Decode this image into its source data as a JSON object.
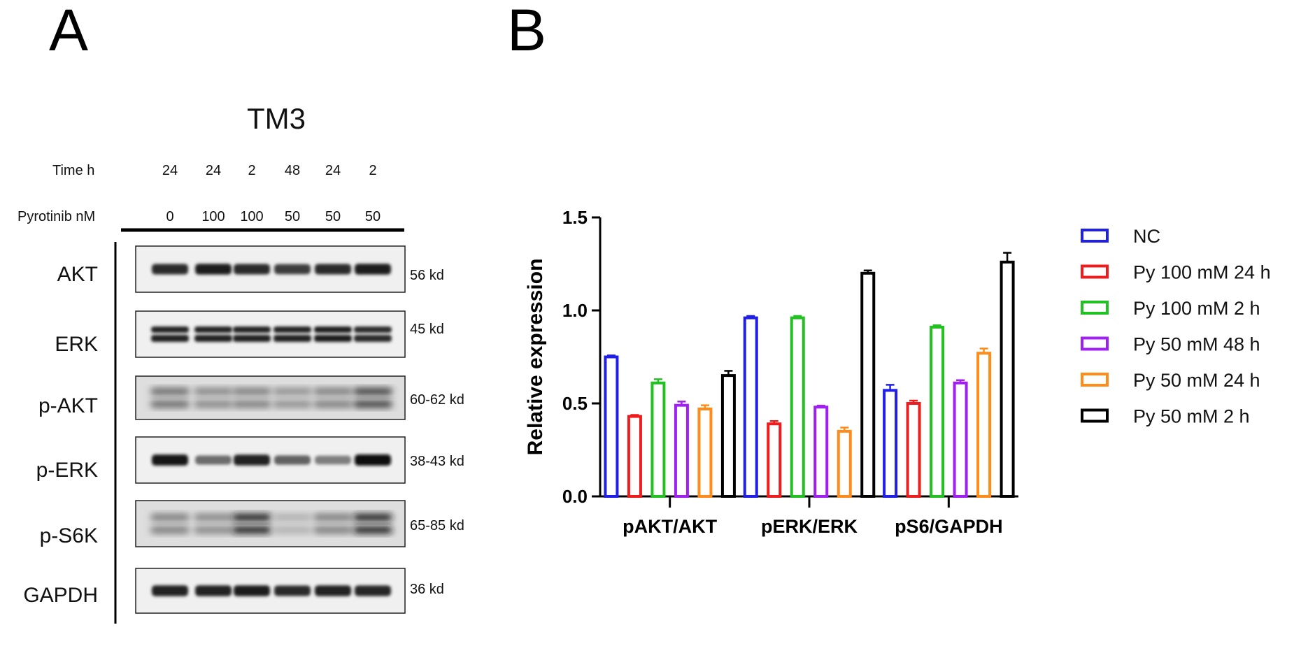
{
  "panels": {
    "a": "A",
    "b": "B"
  },
  "blot": {
    "title": "TM3",
    "time_label": "Time h",
    "drug_label": "Pyrotinib nM",
    "time_values": [
      "24",
      "24",
      "2",
      "48",
      "24",
      "2"
    ],
    "drug_values": [
      "0",
      "100",
      "100",
      "50",
      "50",
      "50"
    ],
    "rows": [
      {
        "label": "AKT",
        "kd": "56 kd",
        "intensity": [
          0.85,
          0.92,
          0.85,
          0.75,
          0.85,
          0.92
        ]
      },
      {
        "label": "ERK",
        "kd": "45 kd",
        "intensity": [
          0.9,
          0.9,
          0.9,
          0.9,
          0.92,
          0.85
        ]
      },
      {
        "label": "p-AKT",
        "kd": "60-62 kd",
        "intensity": [
          0.55,
          0.4,
          0.45,
          0.35,
          0.45,
          0.8
        ]
      },
      {
        "label": "p-ERK",
        "kd": "38-43 kd",
        "intensity": [
          0.95,
          0.5,
          0.9,
          0.55,
          0.4,
          1.0
        ]
      },
      {
        "label": "p-S6K",
        "kd": "65-85 kd",
        "intensity": [
          0.45,
          0.4,
          0.95,
          0.15,
          0.45,
          0.98
        ]
      },
      {
        "label": "GAPDH",
        "kd": "36 kd",
        "intensity": [
          0.9,
          0.9,
          0.92,
          0.85,
          0.9,
          0.88
        ]
      }
    ]
  },
  "chart_data": {
    "type": "bar",
    "title": "",
    "xlabel": "",
    "ylabel": "Relative expression",
    "ylim": [
      0,
      1.5
    ],
    "yticks": [
      "0.0",
      "0.5",
      "1.0",
      "1.5"
    ],
    "grid": false,
    "legend_position": "right",
    "categories": [
      "pAKT/AKT",
      "pERK/ERK",
      "pS6/GAPDH"
    ],
    "series": [
      {
        "name": "NC",
        "color": "#1f1fe8",
        "values": [
          0.75,
          0.96,
          0.57
        ],
        "errors": [
          0.008,
          0.01,
          0.03
        ]
      },
      {
        "name": "Py 100 mM 24 h",
        "color": "#ee1c1c",
        "values": [
          0.43,
          0.39,
          0.5
        ],
        "errors": [
          0.008,
          0.015,
          0.015
        ]
      },
      {
        "name": "Py 100 mM 2 h",
        "color": "#22c022",
        "values": [
          0.61,
          0.96,
          0.91
        ],
        "errors": [
          0.02,
          0.01,
          0.01
        ]
      },
      {
        "name": "Py 50 mM 48 h",
        "color": "#a020f0",
        "values": [
          0.49,
          0.48,
          0.61
        ],
        "errors": [
          0.02,
          0.008,
          0.015
        ]
      },
      {
        "name": "Py 50 mM 24 h",
        "color": "#ff8c1a",
        "values": [
          0.47,
          0.35,
          0.77
        ],
        "errors": [
          0.02,
          0.02,
          0.025
        ]
      },
      {
        "name": "Py 50 mM 2 h",
        "color": "#000000",
        "values": [
          0.65,
          1.2,
          1.26
        ],
        "errors": [
          0.025,
          0.015,
          0.05
        ]
      }
    ]
  }
}
